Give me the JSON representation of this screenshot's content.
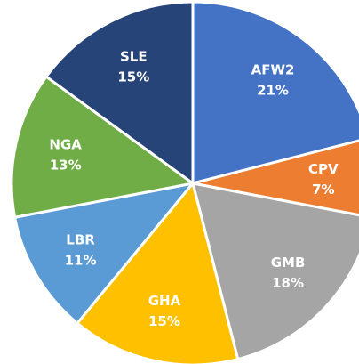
{
  "chart_data": {
    "type": "pie",
    "categories": [
      "AFW2",
      "CPV",
      "GMB",
      "GHA",
      "LBR",
      "NGA",
      "SLE"
    ],
    "values": [
      21,
      7,
      18,
      15,
      11,
      13,
      15
    ],
    "value_labels": [
      "21%",
      "7%",
      "18%",
      "15%",
      "11%",
      "13%",
      "15%"
    ],
    "colors": [
      "#4472c4",
      "#ed7d31",
      "#a5a5a5",
      "#ffc000",
      "#5b9bd5",
      "#70ad47",
      "#264478"
    ]
  }
}
